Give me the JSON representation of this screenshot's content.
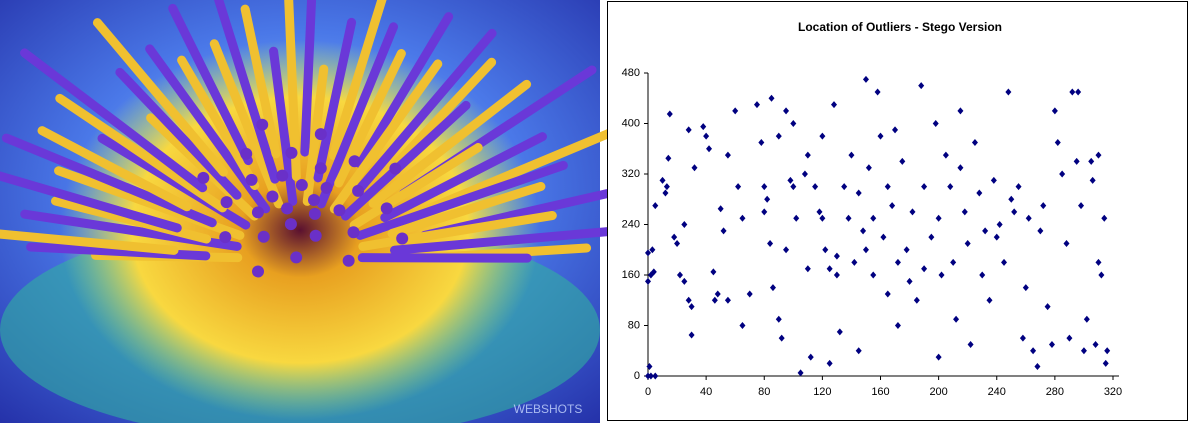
{
  "photo": {
    "watermark": "WEBSHOTS"
  },
  "chart_data": {
    "type": "scatter",
    "title": "Location of Outliers - Stego Version",
    "color": "#000080",
    "xlim": [
      0,
      320
    ],
    "ylim": [
      0,
      480
    ],
    "xticks": [
      0,
      40,
      80,
      120,
      160,
      200,
      240,
      280,
      320
    ],
    "yticks": [
      0,
      80,
      160,
      240,
      320,
      400,
      480
    ],
    "x": [
      0,
      2,
      5,
      1,
      0,
      2,
      4,
      0,
      3,
      5,
      15,
      14,
      12,
      13,
      10,
      18,
      20,
      22,
      25,
      25,
      28,
      30,
      28,
      32,
      30,
      38,
      40,
      42,
      45,
      46,
      48,
      55,
      50,
      52,
      55,
      60,
      62,
      65,
      65,
      70,
      75,
      78,
      80,
      80,
      82,
      84,
      85,
      86,
      90,
      90,
      92,
      95,
      95,
      98,
      100,
      100,
      102,
      105,
      108,
      110,
      110,
      112,
      115,
      118,
      120,
      120,
      122,
      125,
      125,
      128,
      130,
      130,
      132,
      135,
      138,
      140,
      142,
      145,
      145,
      148,
      150,
      150,
      152,
      155,
      155,
      158,
      160,
      162,
      165,
      165,
      168,
      170,
      172,
      172,
      175,
      178,
      180,
      182,
      185,
      188,
      190,
      190,
      195,
      198,
      200,
      200,
      202,
      205,
      208,
      210,
      212,
      215,
      215,
      218,
      220,
      222,
      225,
      228,
      230,
      232,
      235,
      238,
      240,
      242,
      245,
      248,
      250,
      252,
      255,
      258,
      260,
      262,
      265,
      268,
      270,
      272,
      275,
      278,
      280,
      282,
      285,
      288,
      290,
      292,
      295,
      296,
      298,
      300,
      302,
      305,
      306,
      308,
      310,
      310,
      312,
      314,
      315,
      316
    ],
    "values": [
      0,
      0,
      0,
      15,
      150,
      160,
      165,
      195,
      200,
      270,
      415,
      345,
      290,
      300,
      310,
      220,
      210,
      160,
      150,
      240,
      120,
      110,
      390,
      330,
      65,
      395,
      380,
      360,
      165,
      120,
      130,
      120,
      265,
      230,
      350,
      420,
      300,
      80,
      250,
      130,
      430,
      370,
      260,
      300,
      280,
      210,
      440,
      140,
      380,
      90,
      60,
      200,
      420,
      310,
      300,
      400,
      250,
      5,
      320,
      350,
      170,
      30,
      300,
      260,
      250,
      380,
      200,
      170,
      20,
      430,
      160,
      190,
      70,
      300,
      250,
      350,
      180,
      40,
      290,
      230,
      200,
      470,
      330,
      250,
      160,
      450,
      380,
      220,
      300,
      130,
      270,
      390,
      80,
      180,
      340,
      200,
      150,
      260,
      120,
      460,
      300,
      170,
      220,
      400,
      250,
      30,
      160,
      350,
      300,
      180,
      90,
      420,
      330,
      260,
      210,
      50,
      370,
      290,
      160,
      230,
      120,
      310,
      220,
      240,
      180,
      450,
      280,
      260,
      300,
      60,
      140,
      250,
      40,
      15,
      230,
      270,
      110,
      50,
      420,
      370,
      320,
      210,
      60,
      450,
      340,
      450,
      270,
      40,
      90,
      340,
      310,
      50,
      350,
      180,
      160,
      250,
      20,
      40
    ]
  }
}
